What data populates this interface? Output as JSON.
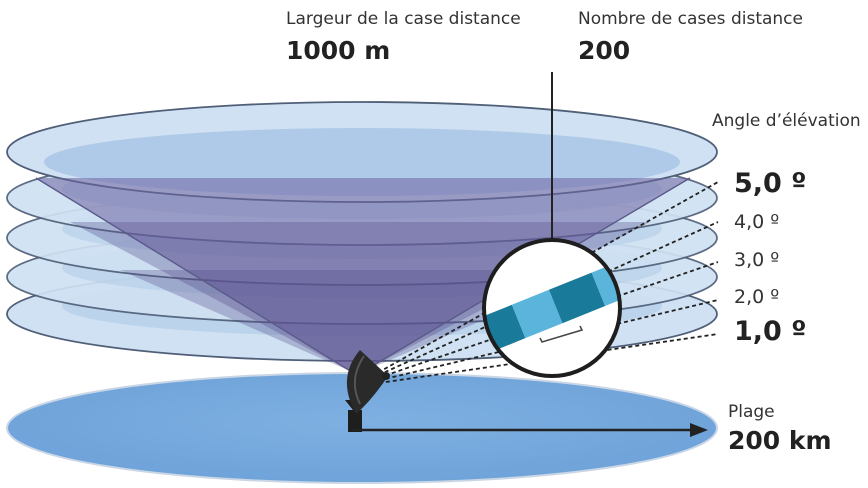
{
  "labels": {
    "bin_width_title": "Largeur de la case distance",
    "bin_width_value": "1000 m",
    "bin_count_title": "Nombre de cases distance",
    "bin_count_value": "200",
    "elevation_title": "Angle d’élévation",
    "range_title": "Plage",
    "range_value": "200 km"
  },
  "elevations": [
    {
      "label": "5,0 º",
      "emphasis": true
    },
    {
      "label": "4,0 º",
      "emphasis": false
    },
    {
      "label": "3,0 º",
      "emphasis": false
    },
    {
      "label": "2,0 º",
      "emphasis": false
    },
    {
      "label": "1,0 º",
      "emphasis": true
    }
  ],
  "colors": {
    "disc_fill": "#cfe1f2",
    "disc_stroke": "#4f5f78",
    "cone": "#6d63a0",
    "ground": "#78a9de",
    "bin_dark": "#1a7a99",
    "bin_light": "#5ab4dc",
    "text": "#333333",
    "line": "#222222"
  },
  "icons": {
    "radar": "radar-dish-icon",
    "zoom": "magnifier-inset-icon"
  }
}
